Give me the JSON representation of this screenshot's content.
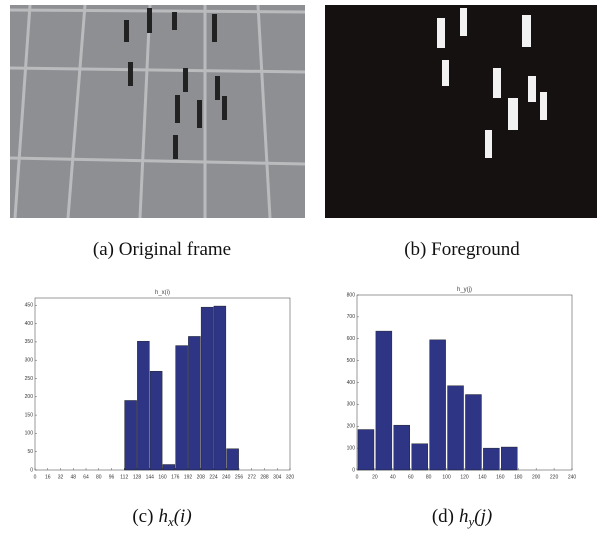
{
  "images": [
    {
      "caption": "(a) Original frame"
    },
    {
      "caption": "(b) Foreground"
    }
  ],
  "chart_data": [
    {
      "type": "bar",
      "title": "h_x(i)",
      "caption_label": "(c)",
      "caption_symbol": "h",
      "caption_subscript": "x",
      "caption_argument": "(i)",
      "x": [
        120,
        136,
        152,
        168,
        184,
        200,
        216,
        232,
        248
      ],
      "values": [
        190,
        352,
        270,
        15,
        340,
        365,
        445,
        448,
        58
      ],
      "color": "#2e3585",
      "xlim": [
        0,
        320
      ],
      "xticks": [
        0,
        16,
        32,
        48,
        64,
        80,
        96,
        112,
        128,
        144,
        160,
        176,
        192,
        208,
        224,
        240,
        256,
        272,
        288,
        304,
        320
      ],
      "ylim": [
        0,
        470
      ],
      "yticks": [
        0,
        50,
        100,
        150,
        200,
        250,
        300,
        350,
        400,
        450
      ]
    },
    {
      "type": "bar",
      "title": "h_y(j)",
      "caption_label": "(d)",
      "caption_symbol": "h",
      "caption_subscript": "y",
      "caption_argument": "(j)",
      "x": [
        10,
        30,
        50,
        70,
        90,
        110,
        130,
        150,
        170
      ],
      "values": [
        185,
        635,
        205,
        120,
        595,
        385,
        345,
        100,
        105
      ],
      "color": "#2e3585",
      "xlim": [
        0,
        240
      ],
      "xticks": [
        0,
        20,
        40,
        60,
        80,
        100,
        120,
        140,
        160,
        180,
        200,
        220,
        240
      ],
      "ylim": [
        0,
        800
      ],
      "yticks": [
        0,
        100,
        200,
        300,
        400,
        500,
        600,
        700,
        800
      ]
    }
  ]
}
